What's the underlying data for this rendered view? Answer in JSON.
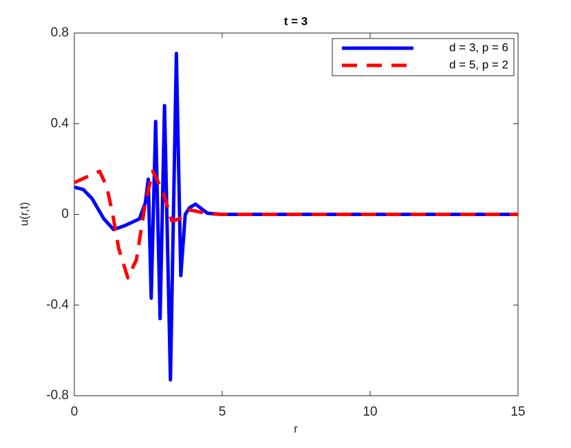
{
  "chart_data": {
    "type": "line",
    "title": "t = 3",
    "x_label": "r",
    "y_label": "u(r,t)",
    "xlim": [
      0,
      15
    ],
    "ylim": [
      -0.8,
      0.8
    ],
    "xticks": [
      0,
      5,
      10,
      15
    ],
    "yticks": [
      -0.8,
      -0.4,
      0,
      0.4,
      0.8
    ],
    "legend_location": "northeast",
    "series": [
      {
        "name": "d = 3, p = 6",
        "color": "#0000ff",
        "style": "solid",
        "x": [
          0,
          0.3,
          0.6,
          1.0,
          1.33,
          1.7,
          2.2,
          2.4,
          2.5,
          2.6,
          2.75,
          2.9,
          3.05,
          3.25,
          3.45,
          3.6,
          3.75,
          3.9,
          4.1,
          4.5,
          5,
          15
        ],
        "values": [
          0.12,
          0.11,
          0.07,
          -0.02,
          -0.067,
          -0.05,
          -0.02,
          0.05,
          0.155,
          -0.37,
          0.41,
          -0.46,
          0.48,
          -0.73,
          0.71,
          -0.27,
          0.0,
          0.03,
          0.045,
          0.005,
          0,
          0
        ]
      },
      {
        "name": "d = 5, p = 2",
        "color": "#ff0000",
        "style": "dashed",
        "x": [
          0,
          0.5,
          0.86,
          1.1,
          1.3,
          1.5,
          1.81,
          2.1,
          2.4,
          2.65,
          3.0,
          3.3,
          3.55,
          3.9,
          4.5,
          5,
          15
        ],
        "values": [
          0.14,
          0.17,
          0.19,
          0.12,
          0.0,
          -0.15,
          -0.28,
          -0.2,
          0.05,
          0.19,
          0.1,
          -0.03,
          -0.02,
          0.02,
          0.003,
          0,
          0
        ]
      }
    ]
  }
}
